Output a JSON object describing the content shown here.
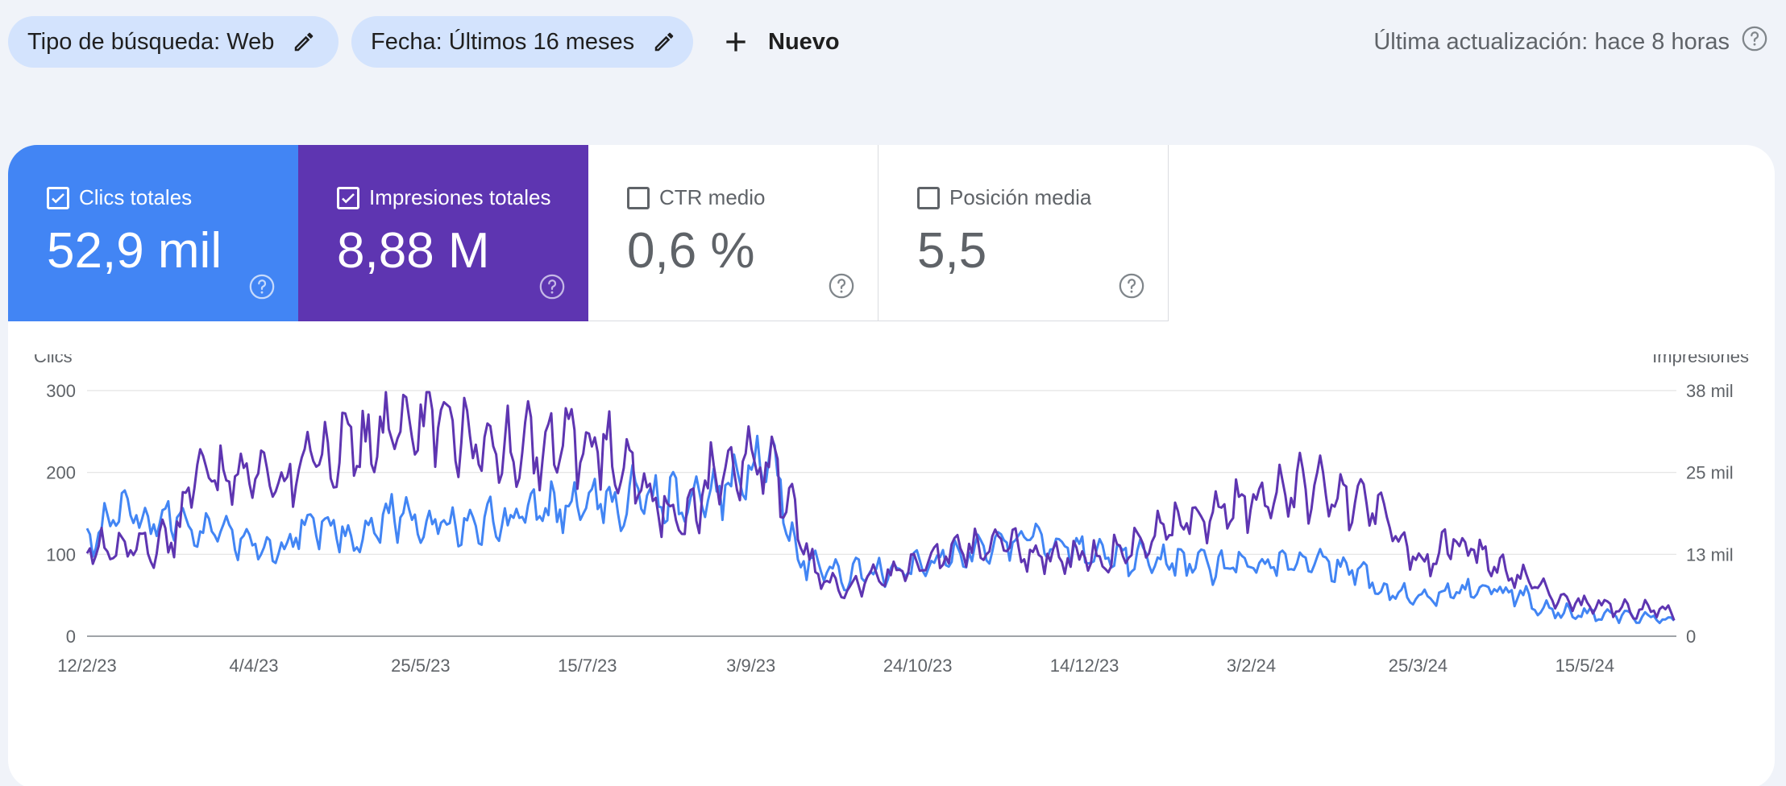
{
  "filters": {
    "search_type": "Tipo de búsqueda: Web",
    "date": "Fecha: Últimos 16 meses",
    "new_label": "Nuevo",
    "last_update": "Última actualización: hace 8 horas"
  },
  "metrics": [
    {
      "key": "clicks",
      "label": "Clics totales",
      "value": "52,9 mil",
      "checked": true,
      "color": "#4285f4"
    },
    {
      "key": "impressions",
      "label": "Impresiones totales",
      "value": "8,88 M",
      "checked": true,
      "color": "#5e35b1"
    },
    {
      "key": "ctr",
      "label": "CTR medio",
      "value": "0,6 %",
      "checked": false
    },
    {
      "key": "position",
      "label": "Posición media",
      "value": "5,5",
      "checked": false
    }
  ],
  "icons": {
    "edit": "pencil-icon",
    "add": "plus-icon",
    "help": "question-circle-icon",
    "checkbox": "checkbox-icon"
  },
  "chart_data": {
    "type": "line",
    "y_left_label": "Clics",
    "y_right_label": "Impresiones",
    "y_left_ticks": [
      "300",
      "200",
      "100",
      "0"
    ],
    "y_right_ticks": [
      "38 mil",
      "25 mil",
      "13 mil",
      "0"
    ],
    "ylim_left": [
      0,
      300
    ],
    "ylim_right": [
      0,
      38000
    ],
    "x_ticks": [
      "12/2/23",
      "4/4/23",
      "25/5/23",
      "15/7/23",
      "3/9/23",
      "24/10/23",
      "14/12/23",
      "3/2/24",
      "25/3/24",
      "15/5/24"
    ],
    "grid": true,
    "series": [
      {
        "name": "Clics",
        "axis": "left",
        "color": "#4285f4",
        "anchors": [
          [
            "12/2/23",
            120
          ],
          [
            "18/2/23",
            140
          ],
          [
            "25/2/23",
            150
          ],
          [
            "4/3/23",
            145
          ],
          [
            "11/3/23",
            150
          ],
          [
            "18/3/23",
            125
          ],
          [
            "25/3/23",
            120
          ],
          [
            "4/4/23",
            115
          ],
          [
            "11/4/23",
            100
          ],
          [
            "18/4/23",
            130
          ],
          [
            "25/4/23",
            135
          ],
          [
            "2/5/23",
            125
          ],
          [
            "9/5/23",
            120
          ],
          [
            "16/5/23",
            150
          ],
          [
            "25/5/23",
            140
          ],
          [
            "5/6/23",
            135
          ],
          [
            "15/6/23",
            140
          ],
          [
            "25/6/23",
            145
          ],
          [
            "5/7/23",
            155
          ],
          [
            "15/7/23",
            160
          ],
          [
            "25/7/23",
            165
          ],
          [
            "3/8/23",
            170
          ],
          [
            "13/8/23",
            165
          ],
          [
            "23/8/23",
            180
          ],
          [
            "3/9/23",
            200
          ],
          [
            "10/9/23",
            215
          ],
          [
            "17/9/23",
            95
          ],
          [
            "24/9/23",
            80
          ],
          [
            "3/10/23",
            75
          ],
          [
            "13/10/23",
            80
          ],
          [
            "24/10/23",
            85
          ],
          [
            "5/11/23",
            100
          ],
          [
            "15/11/23",
            110
          ],
          [
            "25/11/23",
            120
          ],
          [
            "5/12/23",
            115
          ],
          [
            "14/12/23",
            105
          ],
          [
            "25/12/23",
            100
          ],
          [
            "10/1/24",
            90
          ],
          [
            "25/1/24",
            85
          ],
          [
            "3/2/24",
            85
          ],
          [
            "20/2/24",
            95
          ],
          [
            "5/3/24",
            80
          ],
          [
            "15/3/24",
            55
          ],
          [
            "25/3/24",
            45
          ],
          [
            "5/4/24",
            55
          ],
          [
            "15/4/24",
            60
          ],
          [
            "25/4/24",
            50
          ],
          [
            "5/5/24",
            30
          ],
          [
            "15/5/24",
            28
          ],
          [
            "25/5/24",
            25
          ],
          [
            "5/6/24",
            22
          ],
          [
            "12/6/24",
            20
          ]
        ]
      },
      {
        "name": "Impresiones",
        "axis": "right",
        "color": "#5e35b1",
        "anchors": [
          [
            "12/2/23",
            15200
          ],
          [
            "18/2/23",
            13000
          ],
          [
            "25/2/23",
            14000
          ],
          [
            "4/3/23",
            13500
          ],
          [
            "11/3/23",
            15500
          ],
          [
            "18/3/23",
            26000
          ],
          [
            "25/3/23",
            25000
          ],
          [
            "4/4/23",
            26500
          ],
          [
            "11/4/23",
            22000
          ],
          [
            "18/4/23",
            27500
          ],
          [
            "25/4/23",
            26500
          ],
          [
            "2/5/23",
            31000
          ],
          [
            "9/5/23",
            30000
          ],
          [
            "16/5/23",
            33000
          ],
          [
            "25/5/23",
            33500
          ],
          [
            "5/6/23",
            31500
          ],
          [
            "15/6/23",
            29000
          ],
          [
            "25/6/23",
            29500
          ],
          [
            "5/7/23",
            29000
          ],
          [
            "15/7/23",
            30000
          ],
          [
            "25/7/23",
            27000
          ],
          [
            "3/8/23",
            22000
          ],
          [
            "13/8/23",
            17000
          ],
          [
            "23/8/23",
            25000
          ],
          [
            "3/9/23",
            28000
          ],
          [
            "10/9/23",
            27000
          ],
          [
            "17/9/23",
            17000
          ],
          [
            "24/9/23",
            8500
          ],
          [
            "3/10/23",
            8000
          ],
          [
            "13/10/23",
            9000
          ],
          [
            "24/10/23",
            11000
          ],
          [
            "5/11/23",
            13000
          ],
          [
            "15/11/23",
            14000
          ],
          [
            "25/11/23",
            13500
          ],
          [
            "5/12/23",
            12500
          ],
          [
            "14/12/23",
            12000
          ],
          [
            "25/12/23",
            13000
          ],
          [
            "10/1/24",
            17000
          ],
          [
            "25/1/24",
            20000
          ],
          [
            "3/2/24",
            21000
          ],
          [
            "20/2/24",
            23000
          ],
          [
            "5/3/24",
            21000
          ],
          [
            "15/3/24",
            18000
          ],
          [
            "25/3/24",
            11000
          ],
          [
            "5/4/24",
            15000
          ],
          [
            "15/4/24",
            12000
          ],
          [
            "25/4/24",
            9000
          ],
          [
            "5/5/24",
            6000
          ],
          [
            "15/5/24",
            5000
          ],
          [
            "25/5/24",
            4500
          ],
          [
            "5/6/24",
            4000
          ],
          [
            "12/6/24",
            3500
          ]
        ]
      }
    ]
  }
}
